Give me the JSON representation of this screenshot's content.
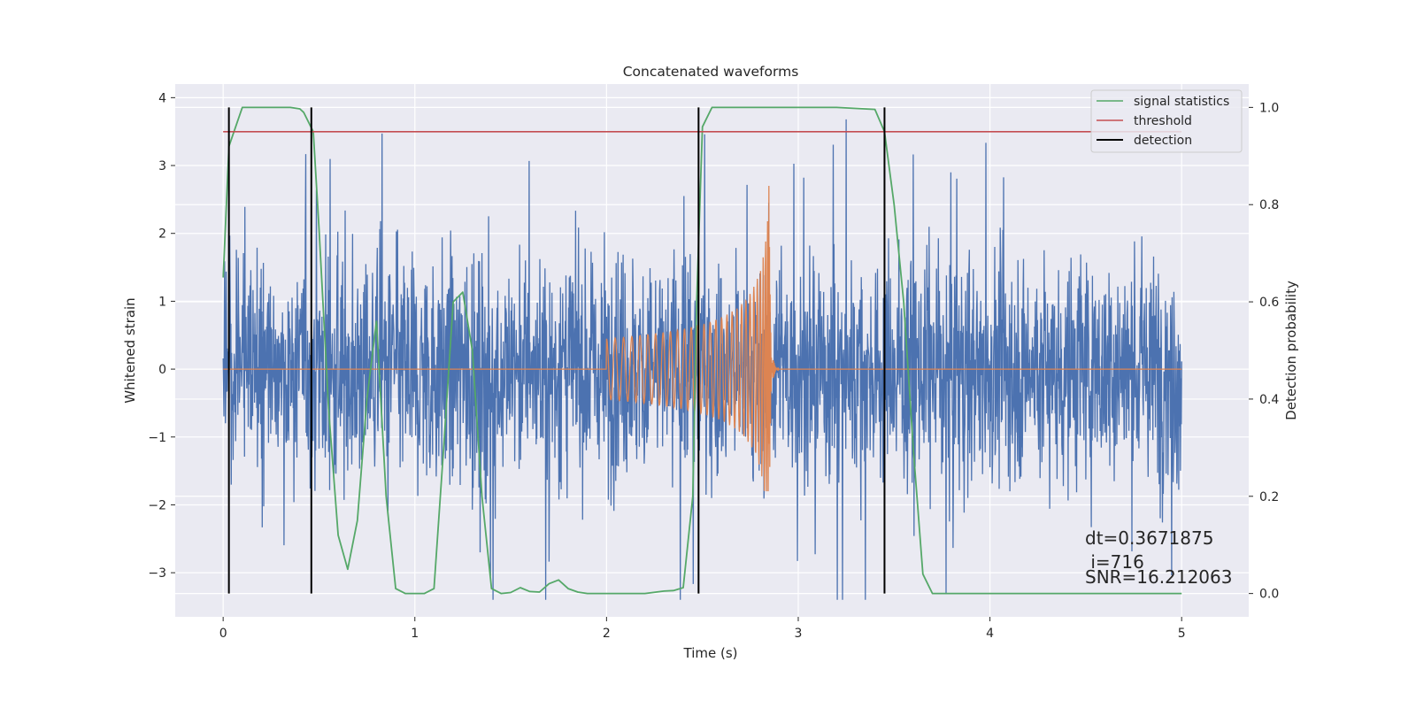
{
  "chart_data": {
    "type": "line",
    "title": "Concatenated waveforms",
    "xlabel": "Time (s)",
    "ylabel": "Whitened strain",
    "ylabel_right": "Detection probability",
    "xlim": [
      -0.25,
      5.35
    ],
    "ylim": [
      -3.65,
      4.2
    ],
    "ylim_right": [
      -0.048,
      1.048
    ],
    "x_ticks": [
      0,
      1,
      2,
      3,
      4,
      5
    ],
    "y_ticks": [
      -3,
      -2,
      -1,
      0,
      1,
      2,
      3,
      4
    ],
    "y_ticks_right": [
      0.0,
      0.2,
      0.4,
      0.6,
      0.8,
      1.0
    ],
    "x_tick_labels": [
      "0",
      "1",
      "2",
      "3",
      "4",
      "5"
    ],
    "y_tick_labels": [
      "−3",
      "−2",
      "−1",
      "0",
      "1",
      "2",
      "3",
      "4"
    ],
    "y_tick_labels_right": [
      "0.0",
      "0.2",
      "0.4",
      "0.6",
      "0.8",
      "1.0"
    ],
    "grid": true,
    "legend_position": "top-right",
    "colors": {
      "background": "#eaeaf2",
      "grid": "#ffffff",
      "strain": "#4c72b0",
      "template": "#dd8452",
      "statistic": "#55a868",
      "threshold": "#c44e52",
      "detection": "#000000"
    },
    "series": [
      {
        "name": "",
        "axis": "left",
        "kind": "whitened strain noise",
        "x_range": [
          0,
          5
        ],
        "std": 0.85,
        "peak_max": 3.8,
        "peak_min": -3.4
      },
      {
        "name": "",
        "axis": "left",
        "kind": "chirp template",
        "x_range": [
          0,
          5
        ],
        "chirp_start": 2.0,
        "merger_time": 2.85,
        "peak": 2.7,
        "trough": -1.8
      },
      {
        "name": "signal statistics",
        "axis": "right",
        "x": [
          0,
          0.03,
          0.1,
          0.2,
          0.35,
          0.4,
          0.42,
          0.47,
          0.5,
          0.55,
          0.6,
          0.65,
          0.7,
          0.75,
          0.8,
          0.85,
          0.9,
          0.95,
          1.0,
          1.05,
          1.1,
          1.15,
          1.2,
          1.25,
          1.3,
          1.35,
          1.4,
          1.45,
          1.5,
          1.55,
          1.6,
          1.65,
          1.7,
          1.75,
          1.8,
          1.85,
          1.9,
          2.0,
          2.1,
          2.2,
          2.3,
          2.35,
          2.4,
          2.45,
          2.47,
          2.5,
          2.55,
          2.6,
          2.8,
          3.0,
          3.2,
          3.4,
          3.45,
          3.5,
          3.55,
          3.6,
          3.65,
          3.7,
          3.8,
          4.0,
          4.5,
          5.0
        ],
        "values": [
          0.65,
          0.92,
          1.0,
          1.0,
          1.0,
          0.997,
          0.99,
          0.95,
          0.75,
          0.38,
          0.12,
          0.05,
          0.15,
          0.4,
          0.56,
          0.2,
          0.01,
          0.0,
          0.0,
          0.0,
          0.01,
          0.3,
          0.6,
          0.62,
          0.5,
          0.2,
          0.01,
          0.0,
          0.002,
          0.012,
          0.004,
          0.003,
          0.02,
          0.028,
          0.01,
          0.003,
          0.0,
          0.0,
          0.0,
          0.0,
          0.005,
          0.006,
          0.012,
          0.2,
          0.6,
          0.96,
          1.0,
          1.0,
          1.0,
          1.0,
          1.0,
          0.996,
          0.95,
          0.8,
          0.6,
          0.3,
          0.04,
          0.0,
          0.0,
          0.0,
          0.0,
          0.0
        ]
      },
      {
        "name": "threshold",
        "axis": "right",
        "x": [
          0,
          5
        ],
        "values": [
          0.95,
          0.95
        ]
      },
      {
        "name": "detection",
        "axis": "right",
        "kind": "vertical lines",
        "x": [
          0.03,
          0.46,
          2.48,
          3.45
        ],
        "y_range": [
          0.0,
          1.0
        ]
      }
    ],
    "annotation": {
      "line1": "dt=0.3671875",
      "line2": " i=716",
      "line3": "SNR=16.212063",
      "x": 4.5,
      "y": -3.0
    }
  }
}
